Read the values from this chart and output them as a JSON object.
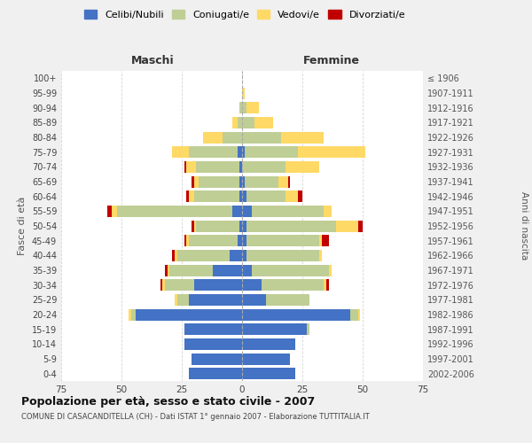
{
  "age_groups": [
    "0-4",
    "5-9",
    "10-14",
    "15-19",
    "20-24",
    "25-29",
    "30-34",
    "35-39",
    "40-44",
    "45-49",
    "50-54",
    "55-59",
    "60-64",
    "65-69",
    "70-74",
    "75-79",
    "80-84",
    "85-89",
    "90-94",
    "95-99",
    "100+"
  ],
  "birth_years": [
    "2002-2006",
    "1997-2001",
    "1992-1996",
    "1987-1991",
    "1982-1986",
    "1977-1981",
    "1972-1976",
    "1967-1971",
    "1962-1966",
    "1957-1961",
    "1952-1956",
    "1947-1951",
    "1942-1946",
    "1937-1941",
    "1932-1936",
    "1927-1931",
    "1922-1926",
    "1917-1921",
    "1912-1916",
    "1907-1911",
    "≤ 1906"
  ],
  "male": {
    "celibi": [
      22,
      21,
      24,
      24,
      44,
      22,
      20,
      12,
      5,
      2,
      1,
      4,
      1,
      1,
      1,
      2,
      0,
      0,
      0,
      0,
      0
    ],
    "coniugati": [
      0,
      0,
      0,
      0,
      2,
      5,
      12,
      18,
      22,
      20,
      18,
      48,
      19,
      17,
      18,
      20,
      8,
      2,
      1,
      0,
      0
    ],
    "vedovi": [
      0,
      0,
      0,
      0,
      1,
      1,
      1,
      1,
      1,
      1,
      1,
      2,
      2,
      2,
      4,
      7,
      8,
      2,
      0,
      0,
      0
    ],
    "divorziati": [
      0,
      0,
      0,
      0,
      0,
      0,
      1,
      1,
      1,
      1,
      1,
      2,
      1,
      1,
      1,
      0,
      0,
      0,
      0,
      0,
      0
    ]
  },
  "female": {
    "nubili": [
      22,
      20,
      22,
      27,
      45,
      10,
      8,
      4,
      2,
      2,
      2,
      4,
      2,
      1,
      0,
      1,
      0,
      0,
      0,
      0,
      0
    ],
    "coniugate": [
      0,
      0,
      0,
      1,
      3,
      18,
      26,
      32,
      30,
      30,
      37,
      30,
      16,
      14,
      18,
      22,
      16,
      5,
      2,
      0,
      0
    ],
    "vedove": [
      0,
      0,
      0,
      0,
      1,
      0,
      1,
      1,
      1,
      1,
      9,
      3,
      5,
      4,
      14,
      28,
      18,
      8,
      5,
      1,
      0
    ],
    "divorziate": [
      0,
      0,
      0,
      0,
      0,
      0,
      1,
      0,
      0,
      3,
      2,
      0,
      2,
      1,
      0,
      0,
      0,
      0,
      0,
      0,
      0
    ]
  },
  "colors": {
    "celibi": "#4472C4",
    "coniugati": "#BFCE95",
    "vedovi": "#FFD966",
    "divorziati": "#C00000"
  },
  "xlim": 75,
  "title": "Popolazione per età, sesso e stato civile - 2007",
  "subtitle": "COMUNE DI CASACANDITELLA (CH) - Dati ISTAT 1° gennaio 2007 - Elaborazione TUTTITALIA.IT",
  "ylabel_left": "Fasce di età",
  "ylabel_right": "Anni di nascita",
  "xlabel_male": "Maschi",
  "xlabel_female": "Femmine",
  "legend_labels": [
    "Celibi/Nubili",
    "Coniugati/e",
    "Vedovi/e",
    "Divorziati/e"
  ],
  "bg_color": "#f0f0f0",
  "plot_bg": "#ffffff"
}
